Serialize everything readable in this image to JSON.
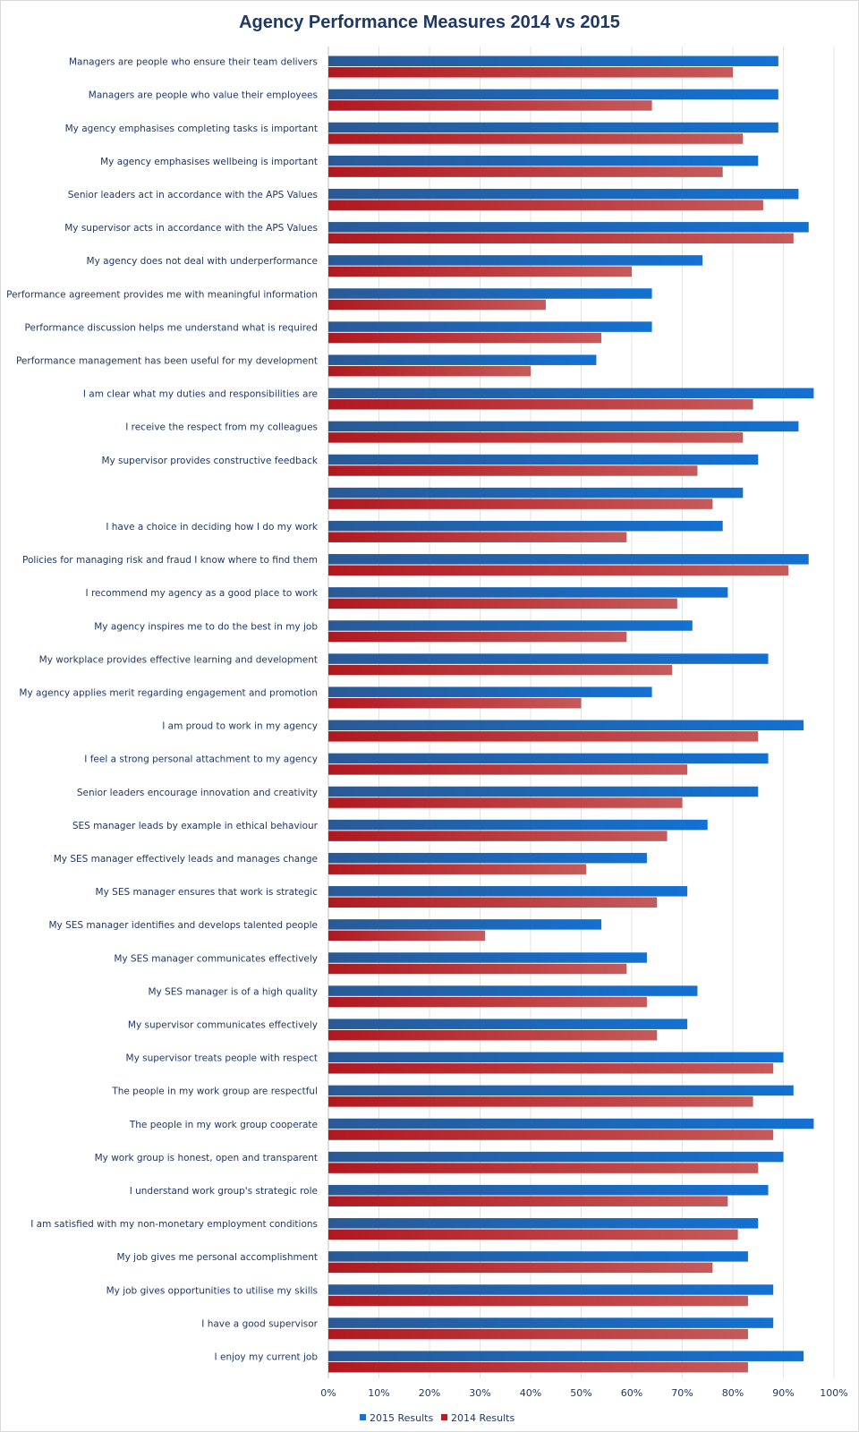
{
  "chart_data": {
    "type": "bar",
    "orientation": "horizontal",
    "title": "Agency Performance Measures 2014 vs 2015",
    "xlabel": "",
    "ylabel": "",
    "xlim": [
      0,
      100
    ],
    "x_ticks": [
      "0%",
      "10%",
      "20%",
      "30%",
      "40%",
      "50%",
      "60%",
      "70%",
      "80%",
      "90%",
      "100%"
    ],
    "grid": true,
    "legend_position": "bottom",
    "categories": [
      "Managers are people who ensure their team delivers",
      "Managers are people who value their employees",
      "My agency emphasises completing tasks is important",
      "My agency emphasises wellbeing is important",
      "Senior leaders act in accordance with the APS Values",
      "My supervisor acts in accordance with the APS Values",
      "My agency does not deal with underperformance",
      "Performance agreement provides me with meaningful information",
      "Performance discussion helps me understand what is required",
      "Performance management has been useful for my development",
      "I am clear what my duties and responsibilities are",
      "I receive the respect from my colleagues",
      "My supervisor provides constructive feedback",
      "",
      "I have a choice in deciding how I do my work",
      "Policies for managing risk and fraud I know where to find them",
      "I recommend my agency as a good place to work",
      "My agency inspires me to do the best in my job",
      "My workplace provides effective learning and development",
      "My agency applies merit regarding engagement and promotion",
      "I am proud to work in my agency",
      "I feel a strong personal attachment to my agency",
      "Senior leaders encourage innovation and creativity",
      "SES manager leads by example in ethical behaviour",
      "My SES manager effectively leads and manages change",
      "My SES manager ensures that work is strategic",
      "My SES manager identifies and develops talented people",
      "My SES manager communicates effectively",
      "My SES manager is of a high quality",
      "My supervisor communicates effectively",
      "My supervisor treats people with respect",
      "The people in my work group are respectful",
      "The people in my work group cooperate",
      "My work group is honest, open and transparent",
      "I understand work group's strategic role",
      "I am satisfied with my non-monetary employment conditions",
      "My job gives me personal accomplishment",
      "My job gives opportunities to utilise my skills",
      "I have a good supervisor",
      "I enjoy my current job"
    ],
    "series": [
      {
        "name": "2015 Results",
        "color": "#1f6fc2",
        "values": [
          89,
          89,
          89,
          85,
          93,
          95,
          74,
          64,
          64,
          53,
          96,
          93,
          85,
          82,
          78,
          95,
          79,
          72,
          87,
          64,
          94,
          87,
          85,
          75,
          63,
          71,
          54,
          63,
          73,
          71,
          90,
          92,
          96,
          90,
          87,
          85,
          83,
          88,
          88,
          94
        ]
      },
      {
        "name": "2014 Results",
        "color": "#c41a1a",
        "values": [
          80,
          64,
          82,
          78,
          86,
          92,
          60,
          43,
          54,
          40,
          84,
          82,
          73,
          76,
          59,
          91,
          69,
          59,
          68,
          50,
          85,
          71,
          70,
          67,
          51,
          65,
          31,
          59,
          63,
          65,
          88,
          84,
          88,
          85,
          79,
          81,
          76,
          83,
          83,
          83
        ]
      }
    ]
  }
}
